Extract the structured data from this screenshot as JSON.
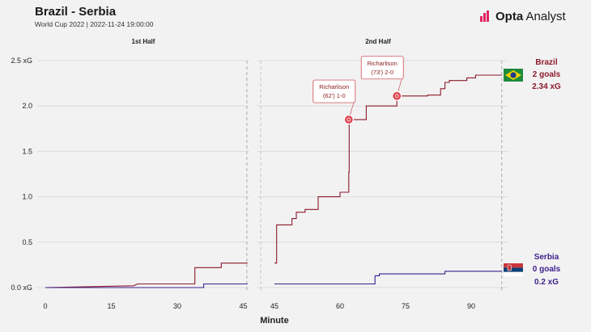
{
  "header": {
    "title": "Brazil - Serbia",
    "subtitle": "World Cup 2022 | 2022-11-24 19:00:00",
    "brand_bold": "Opta",
    "brand_light": " Analyst"
  },
  "colors": {
    "brazil": "#8b1a2a",
    "serbia": "#3b1f8c",
    "grid": "#dcdcdc",
    "background": "#f2f2f2"
  },
  "chart_data": {
    "type": "line",
    "subtype": "xg-step",
    "xlabel": "Minute",
    "ylabel": "",
    "ylim": [
      0,
      2.5
    ],
    "yticks": [
      0,
      0.5,
      1.0,
      1.5,
      2.0,
      2.5
    ],
    "ytick_labels": [
      "0.0 xG",
      "0.5",
      "1.0",
      "1.5",
      "2.0",
      "2.5 xG"
    ],
    "grid": "horizontal",
    "panels": [
      {
        "label": "1st Half",
        "xlim": [
          0,
          46
        ],
        "ticks": [
          0,
          15,
          30,
          45
        ],
        "end_minute": 46
      },
      {
        "label": "2nd Half",
        "xlim": [
          44.5,
          98
        ],
        "ticks": [
          45,
          60,
          75,
          90
        ],
        "end_minute": 97
      }
    ],
    "series": [
      {
        "name": "Brazil",
        "goals_label": "2 goals",
        "xg_label": "2.34 xG",
        "color": "#8b1a2a",
        "first_half": [
          [
            0,
            0
          ],
          [
            20,
            0.02
          ],
          [
            21,
            0.04
          ],
          [
            34,
            0.04
          ],
          [
            34,
            0.22
          ],
          [
            40,
            0.22
          ],
          [
            40,
            0.27
          ],
          [
            46,
            0.27
          ]
        ],
        "second_half": [
          [
            45,
            0.27
          ],
          [
            45.5,
            0.27
          ],
          [
            45.5,
            0.69
          ],
          [
            49,
            0.69
          ],
          [
            49,
            0.76
          ],
          [
            50,
            0.76
          ],
          [
            50,
            0.83
          ],
          [
            52,
            0.83
          ],
          [
            52,
            0.86
          ],
          [
            55,
            0.86
          ],
          [
            55,
            1.0
          ],
          [
            60,
            1.0
          ],
          [
            60,
            1.05
          ],
          [
            62,
            1.05
          ],
          [
            62,
            1.27
          ],
          [
            62.1,
            1.27
          ],
          [
            62.1,
            1.85
          ],
          [
            66,
            1.85
          ],
          [
            66,
            2.0
          ],
          [
            73,
            2.0
          ],
          [
            73,
            2.1
          ],
          [
            74,
            2.1
          ],
          [
            74,
            2.11
          ],
          [
            80,
            2.11
          ],
          [
            80,
            2.12
          ],
          [
            83,
            2.12
          ],
          [
            83,
            2.19
          ],
          [
            84,
            2.19
          ],
          [
            84,
            2.26
          ],
          [
            85,
            2.26
          ],
          [
            85,
            2.28
          ],
          [
            89,
            2.28
          ],
          [
            89,
            2.31
          ],
          [
            91,
            2.31
          ],
          [
            91,
            2.34
          ],
          [
            97,
            2.34
          ]
        ]
      },
      {
        "name": "Serbia",
        "goals_label": "0 goals",
        "xg_label": "0.2 xG",
        "color": "#3b1f8c",
        "first_half": [
          [
            0,
            0
          ],
          [
            36,
            0
          ],
          [
            36,
            0.04
          ],
          [
            46,
            0.04
          ]
        ],
        "second_half": [
          [
            45,
            0.04
          ],
          [
            68,
            0.04
          ],
          [
            68,
            0.13
          ],
          [
            69,
            0.13
          ],
          [
            69,
            0.15
          ],
          [
            84,
            0.15
          ],
          [
            84,
            0.18
          ],
          [
            97,
            0.18
          ]
        ]
      }
    ],
    "goals": [
      {
        "team": "Brazil",
        "half": 2,
        "minute": 62,
        "xg": 1.85,
        "player": "Richarlison",
        "detail": "(62') 1-0"
      },
      {
        "team": "Brazil",
        "half": 2,
        "minute": 73,
        "xg": 2.11,
        "player": "Richarlison",
        "detail": "(73') 2-0"
      }
    ]
  }
}
